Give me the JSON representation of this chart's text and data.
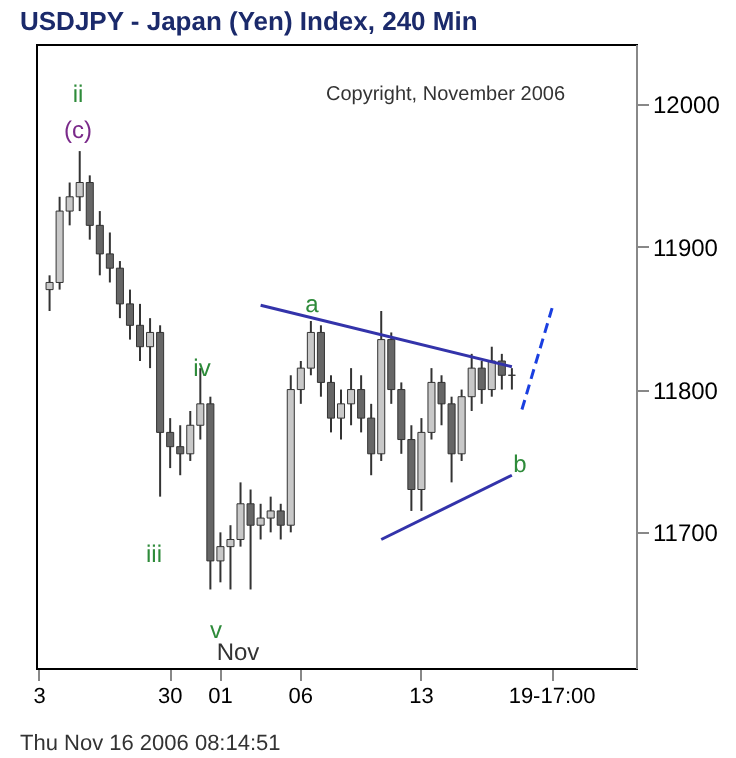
{
  "chart_data": {
    "type": "candlestick",
    "title": "USDJPY - Japan (Yen) Index, 240 Min",
    "categories": [
      "3",
      null,
      null,
      null,
      null,
      null,
      null,
      null,
      null,
      null,
      null,
      null,
      null,
      "30",
      null,
      null,
      null,
      null,
      "01",
      null,
      null,
      null,
      null,
      null,
      null,
      null,
      "06",
      null,
      null,
      null,
      null,
      null,
      null,
      null,
      null,
      null,
      null,
      null,
      "13",
      null,
      null,
      null,
      null,
      null,
      null,
      null,
      null,
      null,
      null,
      null,
      null,
      "19-17:00",
      null,
      null,
      null,
      null,
      null,
      null,
      null,
      null
    ],
    "ohlc": [
      null,
      [
        11870,
        11880,
        11855,
        11875
      ],
      [
        11875,
        11935,
        11870,
        11925
      ],
      [
        11925,
        11945,
        11915,
        11935
      ],
      [
        11935,
        11967,
        11925,
        11945
      ],
      [
        11945,
        11950,
        11905,
        11915
      ],
      [
        11915,
        11925,
        11880,
        11895
      ],
      [
        11895,
        11910,
        11875,
        11885
      ],
      [
        11885,
        11890,
        11850,
        11860
      ],
      [
        11860,
        11870,
        11835,
        11845
      ],
      [
        11845,
        11860,
        11820,
        11830
      ],
      [
        11830,
        11850,
        11815,
        11840
      ],
      [
        11840,
        11845,
        11725,
        11770
      ],
      [
        11770,
        11780,
        11745,
        11760
      ],
      [
        11760,
        11775,
        11740,
        11755
      ],
      [
        11755,
        11785,
        11750,
        11775
      ],
      [
        11775,
        11815,
        11765,
        11790
      ],
      [
        11790,
        11795,
        11660,
        11680
      ],
      [
        11680,
        11700,
        11665,
        11690
      ],
      [
        11690,
        11705,
        11660,
        11695
      ],
      [
        11695,
        11735,
        11690,
        11720
      ],
      [
        11720,
        11730,
        11660,
        11705
      ],
      [
        11705,
        11720,
        11695,
        11710
      ],
      [
        11710,
        11725,
        11700,
        11715
      ],
      [
        11715,
        11720,
        11695,
        11705
      ],
      [
        11705,
        11810,
        11700,
        11800
      ],
      [
        11800,
        11820,
        11790,
        11815
      ],
      [
        11815,
        11848,
        11810,
        11840
      ],
      [
        11840,
        11845,
        11795,
        11805
      ],
      [
        11805,
        11810,
        11770,
        11780
      ],
      [
        11780,
        11800,
        11765,
        11790
      ],
      [
        11790,
        11815,
        11775,
        11800
      ],
      [
        11800,
        11810,
        11770,
        11780
      ],
      [
        11780,
        11790,
        11740,
        11755
      ],
      [
        11755,
        11855,
        11750,
        11835
      ],
      [
        11835,
        11840,
        11790,
        11800
      ],
      [
        11800,
        11805,
        11755,
        11765
      ],
      [
        11765,
        11775,
        11715,
        11730
      ],
      [
        11730,
        11780,
        11715,
        11770
      ],
      [
        11770,
        11815,
        11765,
        11805
      ],
      [
        11805,
        11810,
        11775,
        11790
      ],
      [
        11790,
        11795,
        11735,
        11755
      ],
      [
        11755,
        11800,
        11750,
        11795
      ],
      [
        11795,
        11825,
        11785,
        11815
      ],
      [
        11815,
        11820,
        11790,
        11800
      ],
      [
        11800,
        11830,
        11795,
        11820
      ],
      [
        11820,
        11825,
        11800,
        11810
      ],
      [
        11810,
        11815,
        11800,
        11810
      ],
      null,
      null,
      null,
      null,
      null,
      null,
      null,
      null,
      null,
      null,
      null,
      null
    ],
    "color": "#333333",
    "ylim": [
      11605,
      12042
    ],
    "yticks": [
      11700,
      11800,
      11900,
      12000
    ],
    "series": [
      {
        "type": "line",
        "color": "#3333aa",
        "values": [
          null,
          null,
          null,
          null,
          null,
          null,
          null,
          null,
          null,
          null,
          null,
          null,
          null,
          null,
          null,
          null,
          null,
          null,
          null,
          null,
          null,
          null,
          11859,
          null,
          null,
          null,
          null,
          null,
          null,
          null,
          null,
          null,
          null,
          null,
          null,
          null,
          null,
          null,
          null,
          null,
          null,
          null,
          null,
          null,
          null,
          null,
          null,
          11816,
          null,
          null,
          null,
          null,
          null,
          null,
          null,
          null,
          null,
          null,
          null,
          null
        ]
      },
      {
        "type": "line",
        "color": "#3333aa",
        "values": [
          null,
          null,
          null,
          null,
          null,
          null,
          null,
          null,
          null,
          null,
          null,
          null,
          null,
          null,
          null,
          null,
          null,
          null,
          null,
          null,
          null,
          null,
          null,
          null,
          null,
          null,
          null,
          null,
          null,
          null,
          null,
          null,
          null,
          null,
          11695,
          null,
          null,
          null,
          null,
          null,
          null,
          null,
          null,
          null,
          null,
          null,
          null,
          11740,
          null,
          null,
          null,
          null,
          null,
          null,
          null,
          null,
          null,
          null,
          null,
          null
        ]
      },
      {
        "type": "line",
        "color": "#1a3fe0",
        "line_style": "dashed",
        "values": [
          null,
          null,
          null,
          null,
          null,
          null,
          null,
          null,
          null,
          null,
          null,
          null,
          null,
          null,
          null,
          null,
          null,
          null,
          null,
          null,
          null,
          null,
          null,
          null,
          null,
          null,
          null,
          null,
          null,
          null,
          null,
          null,
          null,
          null,
          null,
          null,
          null,
          null,
          null,
          null,
          null,
          null,
          null,
          null,
          null,
          null,
          null,
          null,
          11786,
          null,
          null,
          11857,
          null,
          null,
          null,
          null,
          null,
          null,
          null,
          null
        ]
      }
    ],
    "grid": false,
    "annotations": [
      "ii",
      "(c)",
      "iii",
      "iv",
      "v",
      "a",
      "b",
      "Nov",
      "Copyright, November 2006",
      "Thu Nov 16 2006 08:14:51"
    ]
  }
}
